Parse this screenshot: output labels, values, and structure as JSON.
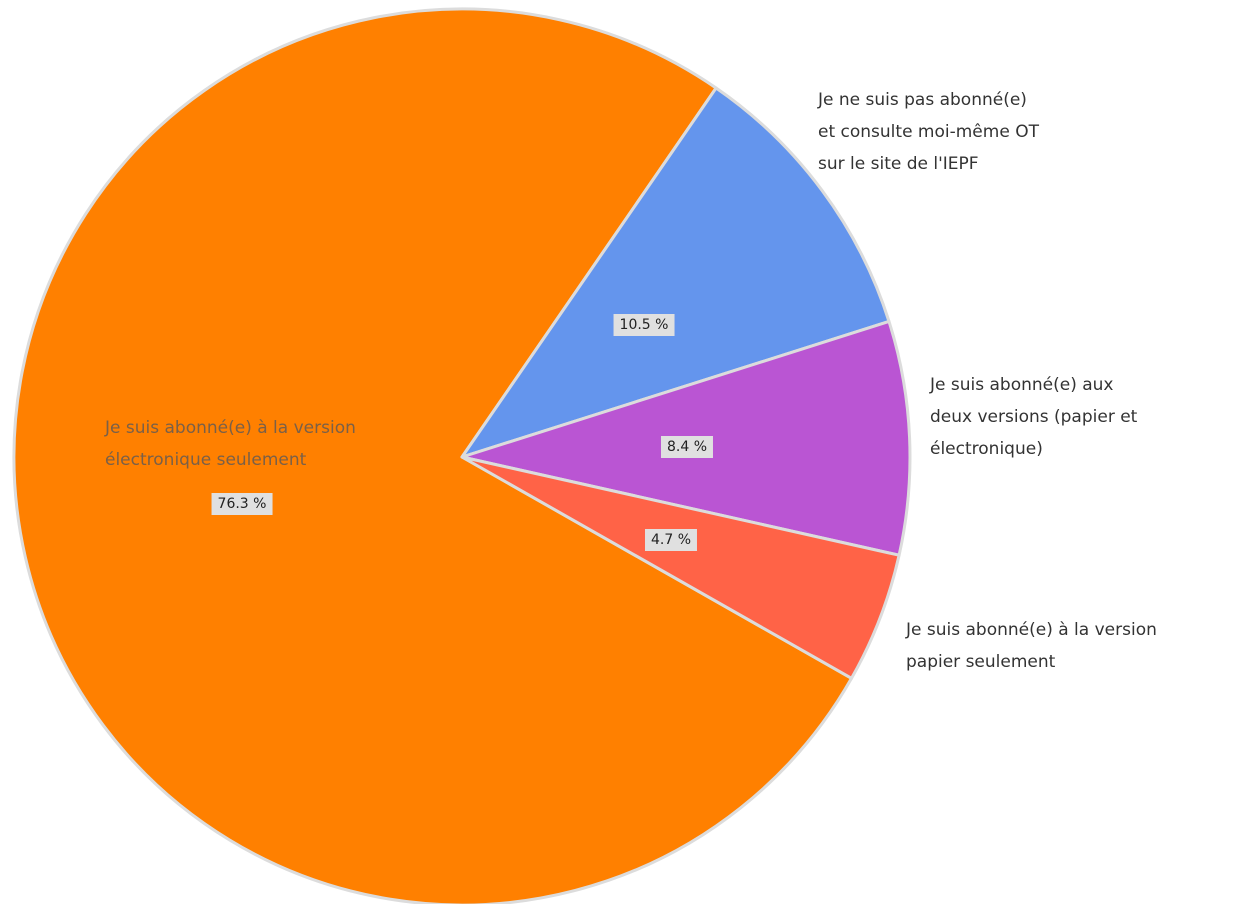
{
  "chart_data": {
    "type": "pie",
    "categories": [
      "Je suis abonné(e) à la version\nélectronique seulement",
      "Je ne suis pas abonné(e)\net consulte moi-même OT\nsur le site de l'IEPF",
      "Je suis abonné(e) aux\ndeux versions (papier et\nélectronique)",
      "Je suis abonné(e) à la version\npapier seulement"
    ],
    "values": [
      76.3,
      10.5,
      8.4,
      4.7
    ],
    "value_labels": [
      "76.3 %",
      "10.5 %",
      "8.4 %",
      "4.7 %"
    ],
    "colors": [
      "#ff8000",
      "#6495ed",
      "#ba55d3",
      "#ff6347"
    ]
  }
}
